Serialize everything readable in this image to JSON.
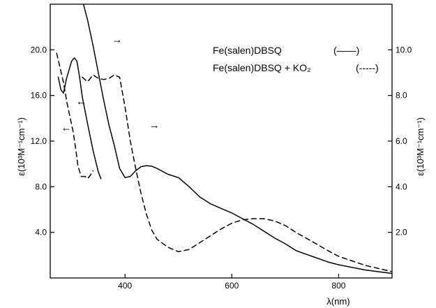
{
  "chart_data": {
    "type": "line",
    "xlabel": "λ(nm)",
    "ylabel_left": "ε(10³M⁻¹cm⁻¹)",
    "ylabel_right": "ε(10³M⁻¹cm⁻¹)",
    "xlim": [
      260,
      900
    ],
    "ylim_left": [
      0,
      24
    ],
    "ylim_right": [
      0,
      12
    ],
    "x_ticks": [
      400,
      600,
      800
    ],
    "x_tick_labels": [
      "400",
      "600",
      "800"
    ],
    "y_left_ticks": [
      4,
      8,
      12,
      16,
      20
    ],
    "y_left_tick_labels": [
      "4.0",
      "8.0",
      "12.0",
      "16.0",
      "20.0"
    ],
    "y_right_ticks": [
      2,
      4,
      6,
      8,
      10
    ],
    "y_right_tick_labels": [
      "2.0",
      "4.0",
      "6.0",
      "8.0",
      "10.0"
    ],
    "grid": false,
    "legend_position": "top-right",
    "series": [
      {
        "name": "Fe(salen)DBSQ",
        "style": "solid",
        "axis": "left",
        "points": [
          [
            275,
            17.6
          ],
          [
            280,
            16.5
          ],
          [
            285,
            16.2
          ],
          [
            290,
            17.4
          ],
          [
            300,
            19.0
          ],
          [
            305,
            19.3
          ],
          [
            310,
            19.0
          ],
          [
            315,
            17.6
          ],
          [
            320,
            15.9
          ],
          [
            330,
            13.5
          ],
          [
            340,
            11.2
          ],
          [
            350,
            9.3
          ],
          [
            355,
            8.7
          ]
        ]
      },
      {
        "name": "Fe(salen)DBSQ",
        "style": "solid",
        "axis": "right",
        "points": [
          [
            320,
            12.2
          ],
          [
            330,
            11.3
          ],
          [
            340,
            10.2
          ],
          [
            350,
            9.0
          ],
          [
            360,
            7.8
          ],
          [
            370,
            6.7
          ],
          [
            380,
            5.8
          ],
          [
            390,
            4.8
          ],
          [
            400,
            4.4
          ],
          [
            410,
            4.45
          ],
          [
            420,
            4.7
          ],
          [
            430,
            4.88
          ],
          [
            440,
            4.92
          ],
          [
            450,
            4.9
          ],
          [
            460,
            4.8
          ],
          [
            480,
            4.55
          ],
          [
            500,
            4.4
          ],
          [
            520,
            4.0
          ],
          [
            540,
            3.55
          ],
          [
            560,
            3.25
          ],
          [
            580,
            3.05
          ],
          [
            600,
            2.85
          ],
          [
            620,
            2.6
          ],
          [
            640,
            2.35
          ],
          [
            660,
            2.05
          ],
          [
            680,
            1.75
          ],
          [
            700,
            1.5
          ],
          [
            720,
            1.2
          ],
          [
            750,
            0.95
          ],
          [
            780,
            0.7
          ],
          [
            800,
            0.58
          ],
          [
            850,
            0.35
          ],
          [
            900,
            0.2
          ]
        ]
      },
      {
        "name": "Fe(salen)DBSQ + KO₂",
        "style": "dashed",
        "axis": "left",
        "points": [
          [
            272,
            19.7
          ],
          [
            278,
            18.5
          ],
          [
            285,
            17.1
          ],
          [
            292,
            15.2
          ],
          [
            298,
            13.9
          ],
          [
            303,
            12.8
          ],
          [
            308,
            11.2
          ],
          [
            312,
            9.8
          ],
          [
            318,
            8.9
          ],
          [
            325,
            8.9
          ],
          [
            330,
            8.7
          ],
          [
            335,
            9.0
          ],
          [
            340,
            9.4
          ]
        ]
      },
      {
        "name": "Fe(salen)DBSQ + KO₂",
        "style": "dashed",
        "axis": "right",
        "points": [
          [
            320,
            8.8
          ],
          [
            330,
            8.6
          ],
          [
            340,
            8.9
          ],
          [
            350,
            8.75
          ],
          [
            360,
            8.7
          ],
          [
            370,
            8.75
          ],
          [
            380,
            8.9
          ],
          [
            390,
            8.8
          ],
          [
            400,
            7.5
          ],
          [
            410,
            6.0
          ],
          [
            420,
            4.8
          ],
          [
            430,
            3.7
          ],
          [
            440,
            2.8
          ],
          [
            450,
            2.1
          ],
          [
            460,
            1.7
          ],
          [
            480,
            1.35
          ],
          [
            500,
            1.15
          ],
          [
            520,
            1.25
          ],
          [
            540,
            1.55
          ],
          [
            560,
            1.85
          ],
          [
            580,
            2.15
          ],
          [
            600,
            2.4
          ],
          [
            620,
            2.55
          ],
          [
            640,
            2.6
          ],
          [
            660,
            2.6
          ],
          [
            680,
            2.5
          ],
          [
            700,
            2.3
          ],
          [
            720,
            2.0
          ],
          [
            750,
            1.6
          ],
          [
            780,
            1.2
          ],
          [
            800,
            0.95
          ],
          [
            850,
            0.55
          ],
          [
            900,
            0.28
          ]
        ]
      }
    ],
    "annotations": [
      {
        "text": "→",
        "x": 385,
        "y_right": 10.45,
        "axis_side": "right"
      },
      {
        "text": "←",
        "x": 318,
        "y_left": 15.5,
        "axis_side": "left"
      },
      {
        "text": "←",
        "x": 290,
        "y_left": 13.2,
        "axis_side": "left"
      },
      {
        "text": "→",
        "x": 455,
        "y_right": 6.7,
        "axis_side": "right"
      }
    ],
    "legend": [
      {
        "label": "Fe(salen)DBSQ",
        "marker": "(——)"
      },
      {
        "label": "Fe(salen)DBSQ + KO₂",
        "marker": "(-----)"
      }
    ]
  }
}
